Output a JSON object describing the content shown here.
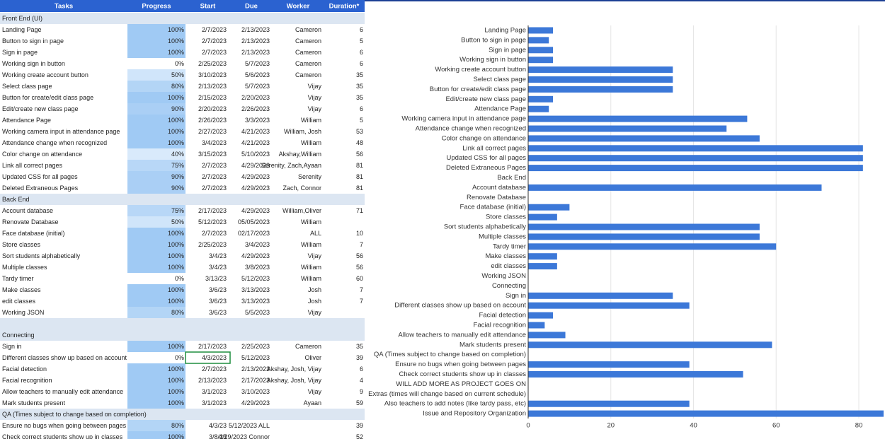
{
  "table": {
    "headers": [
      "Tasks",
      "Progress",
      "Start",
      "Due",
      "Worker",
      "Duration*"
    ],
    "rows": [
      {
        "section": "Front End (UI)"
      },
      [
        "Landing Page",
        "100%",
        "2/7/2023",
        "2/13/2023",
        "Cameron",
        "6"
      ],
      [
        "Button to sign in page",
        "100%",
        "2/7/2023",
        "2/13/2023",
        "Cameron",
        "5"
      ],
      [
        "Sign in page",
        "100%",
        "2/7/2023",
        "2/13/2023",
        "Cameron",
        "6"
      ],
      [
        "Working sign in button",
        "0%",
        "2/25/2023",
        "5/7/2023",
        "Cameron",
        "6"
      ],
      [
        "Working create account button",
        "50%",
        "3/10/2023",
        "5/6/2023",
        "Cameron",
        "35"
      ],
      [
        "Select class page",
        "80%",
        "2/13/2023",
        "5/7/2023",
        "Vijay",
        "35"
      ],
      [
        "Button for create/edit class page",
        "100%",
        "2/15/2023",
        "2/20/2023",
        "Vijay",
        "35"
      ],
      [
        "Edit/create new class page",
        "90%",
        "2/20/2023",
        "2/26/2023",
        "Vijay",
        "6"
      ],
      [
        "Attendance Page",
        "100%",
        "2/26/2023",
        "3/3/2023",
        "William",
        "5"
      ],
      [
        "Working camera input in attendance page",
        "100%",
        "2/27/2023",
        "4/21/2023",
        "William, Josh",
        "53"
      ],
      [
        "Attendance change when recognized",
        "100%",
        "3/4/2023",
        "4/21/2023",
        "William",
        "48"
      ],
      [
        "Color change on attendance",
        "40%",
        "3/15/2023",
        "5/10/2023",
        "Akshay,William",
        "56"
      ],
      [
        "Link all correct pages",
        "75%",
        "2/7/2023",
        "4/29/2023",
        "Serenity, Zach,Ayaan",
        "81"
      ],
      [
        "Updated CSS for all pages",
        "90%",
        "2/7/2023",
        "4/29/2023",
        "Serenity",
        "81"
      ],
      [
        "Deleted Extraneous Pages",
        "90%",
        "2/7/2023",
        "4/29/2023",
        "Zach, Connor",
        "81"
      ],
      {
        "section": "Back End"
      },
      [
        "Account database",
        "75%",
        "2/17/2023",
        "4/29/2023",
        "William,Oliver",
        "71"
      ],
      [
        "Renovate Database",
        "50%",
        "5/12/2023",
        "05/05/2023",
        "William",
        null
      ],
      [
        "Face database (initial)",
        "100%",
        "2/7/2023",
        "02/17/2023",
        "ALL",
        "10"
      ],
      [
        "Store classes",
        "100%",
        "2/25/2023",
        "3/4/2023",
        "William",
        "7"
      ],
      [
        "Sort students alphabetically",
        "100%",
        "3/4/23",
        "4/29/2023",
        "Vijay",
        "56"
      ],
      [
        "Multiple classes",
        "100%",
        "3/4/23",
        "3/8/2023",
        "William",
        "56"
      ],
      [
        "Tardy timer",
        "0%",
        "3/13/23",
        "5/12/2023",
        "William",
        "60"
      ],
      [
        "Make classes",
        "100%",
        "3/6/23",
        "3/13/2023",
        "Josh",
        "7"
      ],
      [
        "edit classes",
        "100%",
        "3/6/23",
        "3/13/2023",
        "Josh",
        "7"
      ],
      [
        "Working JSON",
        "80%",
        "3/6/23",
        "5/5/2023",
        "Vijay",
        null
      ],
      null,
      {
        "section": "Connecting"
      },
      [
        "Sign in",
        "100%",
        "2/17/2023",
        "2/25/2023",
        "Cameron",
        "35"
      ],
      [
        "Different classes show up based on account",
        "0%",
        "4/3/2023",
        "5/12/2023",
        "Oliver",
        "39"
      ],
      [
        "Facial detection",
        "100%",
        "2/7/2023",
        "2/13/2023",
        "Akshay, Josh, Vijay",
        "6"
      ],
      [
        "Facial recognition",
        "100%",
        "2/13/2023",
        "2/17/2023",
        "Akshay, Josh, Vijay",
        "4"
      ],
      [
        "Allow teachers to manually edit attendance",
        "100%",
        "3/1/2023",
        "3/10/2023",
        "Vijay",
        "9"
      ],
      [
        "Mark students present",
        "100%",
        "3/1/2023",
        "4/29/2023",
        "Ayaan",
        "59"
      ],
      {
        "section": "QA (Times subject to change based on completion)"
      },
      [
        "Ensure no bugs when going between pages",
        "80%",
        "4/3/23",
        "5/12/2023 ALL",
        null,
        "39"
      ],
      [
        "Check correct students show up in classes",
        "100%",
        "3/8/23",
        "4/29/2023 Connor",
        null,
        "52"
      ]
    ]
  },
  "chart_data": {
    "type": "bar",
    "orientation": "horizontal",
    "color": "#3c78d8",
    "grid": true,
    "categories": [
      "Landing Page",
      "Button to sign in page",
      "Sign in page",
      "Working sign in button",
      "Working create account button",
      "Select class page",
      "Button for create/edit class page",
      "Edit/create new class page",
      "Attendance Page",
      "Working camera input in attendance page",
      "Attendance change when recognized",
      "Color change on attendance",
      "Link all correct pages",
      "Updated CSS for all pages",
      "Deleted Extraneous Pages",
      "Back End",
      "Account database",
      "Renovate Database",
      "Face database (initial)",
      "Store classes",
      "Sort students alphabetically",
      "Multiple classes",
      "Tardy timer",
      "Make classes",
      "edit classes",
      "Working JSON",
      "Connecting",
      "Sign in",
      "Different classes show up based on account",
      "Facial detection",
      "Facial recognition",
      "Allow teachers to manually edit attendance",
      "Mark students present",
      "QA (Times subject to change based on completion)",
      "Ensure no bugs when going between pages",
      "Check correct students show up in classes",
      "WILL ADD MORE AS PROJECT GOES ON",
      "Extras (times will change based on current schedule)",
      "Also teachers to add notes (like tardy pass, etc)",
      "Issue and Repository Organization"
    ],
    "values": [
      6,
      5,
      6,
      6,
      35,
      35,
      35,
      6,
      5,
      53,
      48,
      56,
      81,
      81,
      81,
      null,
      71,
      null,
      10,
      7,
      56,
      56,
      60,
      7,
      7,
      null,
      null,
      35,
      39,
      6,
      4,
      9,
      59,
      null,
      39,
      52,
      null,
      null,
      39,
      86
    ],
    "xlim": [
      0,
      86
    ],
    "xticks": [
      0,
      20,
      40,
      60,
      80
    ]
  }
}
